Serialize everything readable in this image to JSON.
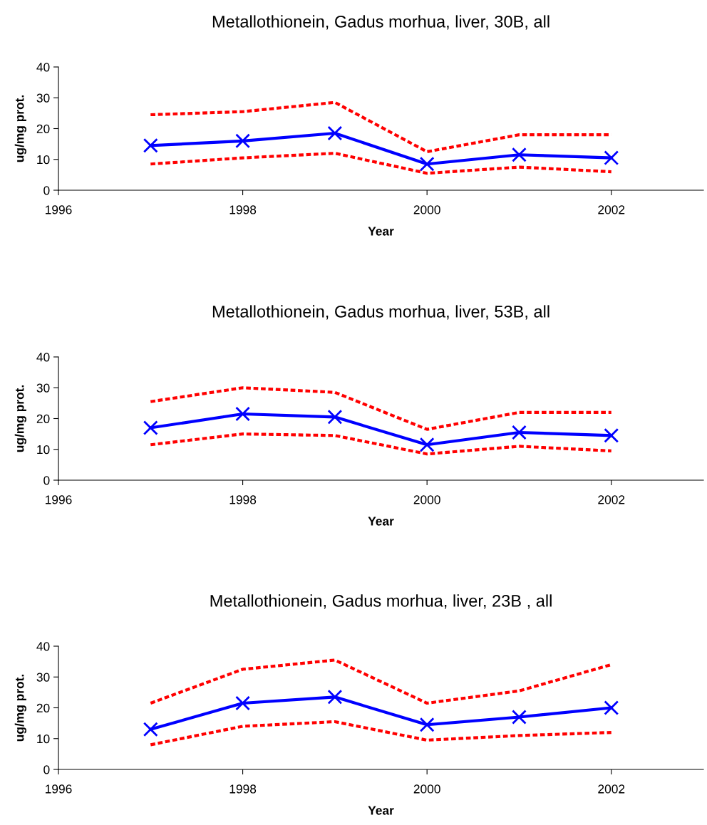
{
  "chart_data": [
    {
      "type": "line",
      "title": "Metallothionein, Gadus morhua, liver, 30B, all",
      "xlabel": "Year",
      "ylabel": "ug/mg prot.",
      "x": [
        1997,
        1998,
        1999,
        2000,
        2001,
        2002
      ],
      "xlim": [
        1996,
        2003
      ],
      "xticks": [
        1996,
        1998,
        2000,
        2002
      ],
      "ylim": [
        0,
        40
      ],
      "yticks": [
        0,
        10,
        20,
        30,
        40
      ],
      "grid": false,
      "legend": false,
      "series": [
        {
          "color": "#ff0000",
          "line_style": "dashed",
          "marker": "none",
          "values": [
            24.5,
            25.5,
            28.5,
            12.5,
            18,
            18
          ]
        },
        {
          "color": "#ff0000",
          "line_style": "dashed",
          "marker": "none",
          "values": [
            8.5,
            10.5,
            12,
            5.5,
            7.5,
            6
          ]
        },
        {
          "color": "#0000ff",
          "line_style": "solid",
          "marker": "cross",
          "values": [
            14.5,
            16,
            18.5,
            8.5,
            11.5,
            10.5
          ]
        }
      ]
    },
    {
      "type": "line",
      "title": "Metallothionein, Gadus morhua, liver, 53B, all",
      "xlabel": "Year",
      "ylabel": "ug/mg prot.",
      "x": [
        1997,
        1998,
        1999,
        2000,
        2001,
        2002
      ],
      "xlim": [
        1996,
        2003
      ],
      "xticks": [
        1996,
        1998,
        2000,
        2002
      ],
      "ylim": [
        0,
        40
      ],
      "yticks": [
        0,
        10,
        20,
        30,
        40
      ],
      "grid": false,
      "legend": false,
      "series": [
        {
          "color": "#ff0000",
          "line_style": "dashed",
          "marker": "none",
          "values": [
            25.5,
            30,
            28.5,
            16.5,
            22,
            22
          ]
        },
        {
          "color": "#ff0000",
          "line_style": "dashed",
          "marker": "none",
          "values": [
            11.5,
            15,
            14.5,
            8.5,
            11,
            9.5
          ]
        },
        {
          "color": "#0000ff",
          "line_style": "solid",
          "marker": "cross",
          "values": [
            17,
            21.5,
            20.5,
            11.5,
            15.5,
            14.5
          ]
        }
      ]
    },
    {
      "type": "line",
      "title": "Metallothionein, Gadus morhua, liver, 23B , all",
      "xlabel": "Year",
      "ylabel": "ug/mg prot.",
      "x": [
        1997,
        1998,
        1999,
        2000,
        2001,
        2002
      ],
      "xlim": [
        1996,
        2003
      ],
      "xticks": [
        1996,
        1998,
        2000,
        2002
      ],
      "ylim": [
        0,
        40
      ],
      "yticks": [
        0,
        10,
        20,
        30,
        40
      ],
      "grid": false,
      "legend": false,
      "series": [
        {
          "color": "#ff0000",
          "line_style": "dashed",
          "marker": "none",
          "values": [
            21.5,
            32.5,
            35.5,
            21.5,
            25.5,
            34
          ]
        },
        {
          "color": "#ff0000",
          "line_style": "dashed",
          "marker": "none",
          "values": [
            8,
            14,
            15.5,
            9.5,
            11,
            12
          ]
        },
        {
          "color": "#0000ff",
          "line_style": "solid",
          "marker": "cross",
          "values": [
            13,
            21.5,
            23.5,
            14.5,
            17,
            20
          ]
        }
      ]
    }
  ]
}
